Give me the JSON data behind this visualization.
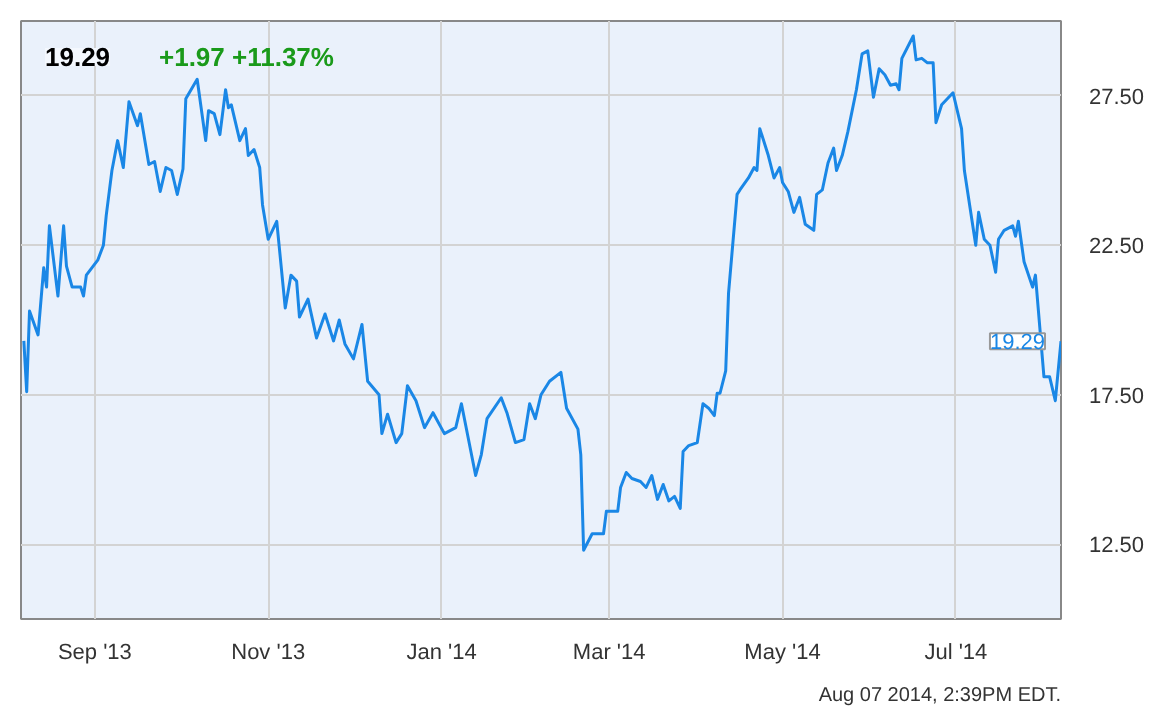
{
  "chart_data": {
    "type": "line",
    "title": "19.29",
    "subtitle": "+1.97  +11.37%",
    "annotations": [
      {
        "text": "19.29",
        "x": "2014-08-07",
        "y": 19.29
      },
      "Aug 07 2014, 2:39PM EDT."
    ],
    "x": [
      "2013-08-07",
      "2013-08-08",
      "2013-08-09",
      "2013-08-12",
      "2013-08-14",
      "2013-08-15",
      "2013-08-16",
      "2013-08-19",
      "2013-08-21",
      "2013-08-22",
      "2013-08-24",
      "2013-08-27",
      "2013-08-28",
      "2013-08-29",
      "2013-09-02",
      "2013-09-04",
      "2013-09-05",
      "2013-09-07",
      "2013-09-09",
      "2013-09-11",
      "2013-09-13",
      "2013-09-16",
      "2013-09-17",
      "2013-09-20",
      "2013-09-22",
      "2013-09-24",
      "2013-09-26",
      "2013-09-28",
      "2013-09-30",
      "2013-10-02",
      "2013-10-03",
      "2013-10-07",
      "2013-10-10",
      "2013-10-11",
      "2013-10-13",
      "2013-10-15",
      "2013-10-17",
      "2013-10-18",
      "2013-10-19",
      "2013-10-22",
      "2013-10-24",
      "2013-10-25",
      "2013-10-27",
      "2013-10-29",
      "2013-10-30",
      "2013-11-01",
      "2013-11-04",
      "2013-11-07",
      "2013-11-09",
      "2013-11-11",
      "2013-11-12",
      "2013-11-15",
      "2013-11-18",
      "2013-11-21",
      "2013-11-24",
      "2013-11-26",
      "2013-11-28",
      "2013-12-01",
      "2013-12-04",
      "2013-12-06",
      "2013-12-10",
      "2013-12-11",
      "2013-12-13",
      "2013-12-16",
      "2013-12-18",
      "2013-12-20",
      "2013-12-23",
      "2013-12-26",
      "2013-12-29",
      "2014-01-02",
      "2014-01-06",
      "2014-01-08",
      "2014-01-13",
      "2014-01-15",
      "2014-01-17",
      "2014-01-22",
      "2014-01-24",
      "2014-01-27",
      "2014-01-30",
      "2014-02-01",
      "2014-02-03",
      "2014-02-05",
      "2014-02-08",
      "2014-02-12",
      "2014-02-14",
      "2014-02-18",
      "2014-02-19",
      "2014-02-20",
      "2014-02-23",
      "2014-02-27",
      "2014-02-28",
      "2014-03-04",
      "2014-03-05",
      "2014-03-07",
      "2014-03-09",
      "2014-03-12",
      "2014-03-14",
      "2014-03-16",
      "2014-03-18",
      "2014-03-20",
      "2014-03-22",
      "2014-03-24",
      "2014-03-26",
      "2014-03-27",
      "2014-03-29",
      "2014-04-01",
      "2014-04-03",
      "2014-04-05",
      "2014-04-07",
      "2014-04-08",
      "2014-04-09",
      "2014-04-11",
      "2014-04-12",
      "2014-04-15",
      "2014-04-16",
      "2014-04-19",
      "2014-04-21",
      "2014-04-22",
      "2014-04-23",
      "2014-04-26",
      "2014-04-28",
      "2014-04-30",
      "2014-05-01",
      "2014-05-03",
      "2014-05-05",
      "2014-05-07",
      "2014-05-09",
      "2014-05-12",
      "2014-05-13",
      "2014-05-15",
      "2014-05-17",
      "2014-05-19",
      "2014-05-20",
      "2014-05-22",
      "2014-05-24",
      "2014-05-27",
      "2014-05-29",
      "2014-05-31",
      "2014-06-02",
      "2014-06-04",
      "2014-06-06",
      "2014-06-08",
      "2014-06-10",
      "2014-06-11",
      "2014-06-12",
      "2014-06-16",
      "2014-06-17",
      "2014-06-19",
      "2014-06-21",
      "2014-06-23",
      "2014-06-24",
      "2014-06-26",
      "2014-06-30",
      "2014-07-03",
      "2014-07-04",
      "2014-07-08",
      "2014-07-09",
      "2014-07-11",
      "2014-07-13",
      "2014-07-15",
      "2014-07-16",
      "2014-07-18",
      "2014-07-21",
      "2014-07-22",
      "2014-07-23",
      "2014-07-25",
      "2014-07-28",
      "2014-07-29",
      "2014-08-01",
      "2014-08-03",
      "2014-08-05",
      "2014-08-07"
    ],
    "series": [
      {
        "color": "#1a87e6",
        "values": [
          19.3,
          17.6,
          20.3,
          19.5,
          21.75,
          21.1,
          23.15,
          20.8,
          23.15,
          21.8,
          21.1,
          21.1,
          20.8,
          21.5,
          22,
          22.5,
          23.5,
          25,
          26,
          25.1,
          27.3,
          26.5,
          26.9,
          25.2,
          25.3,
          24.3,
          25.1,
          25,
          24.2,
          25.05,
          27.4,
          28.05,
          26,
          27,
          26.9,
          26.2,
          27.7,
          27.1,
          27.2,
          26,
          26.4,
          25.5,
          25.7,
          25.1,
          23.85,
          22.7,
          23.3,
          20.4,
          21.5,
          21.3,
          20.1,
          20.7,
          19.4,
          20.2,
          19.3,
          20,
          19.2,
          18.7,
          19.85,
          17.95,
          17.5,
          16.2,
          16.85,
          15.9,
          16.2,
          17.8,
          17.3,
          16.4,
          16.9,
          16.2,
          16.4,
          17.2,
          14.8,
          15.5,
          16.7,
          17.4,
          16.9,
          15.9,
          16,
          17.2,
          16.7,
          17.5,
          17.95,
          18.25,
          17.05,
          16.35,
          15.5,
          12.3,
          12.85,
          12.85,
          13.6,
          13.6,
          14.4,
          14.9,
          14.7,
          14.6,
          14.4,
          14.8,
          14,
          14.5,
          13.95,
          14.1,
          13.7,
          15.6,
          15.8,
          15.9,
          17.2,
          17.05,
          16.8,
          17.55,
          17.55,
          18.3,
          20.9,
          24.2,
          24.35,
          24.75,
          25.1,
          25,
          26.4,
          25.5,
          24.75,
          25.1,
          24.6,
          24.3,
          23.6,
          24.1,
          23.2,
          23,
          24.2,
          24.35,
          25.25,
          25.75,
          25,
          25.5,
          26.3,
          27.7,
          28.9,
          29,
          27.45,
          28.4,
          28.2,
          27.85,
          27.9,
          27.7,
          28.75,
          29.5,
          28.7,
          28.75,
          28.6,
          28.6,
          26.6,
          27.2,
          27.6,
          26.4,
          25,
          22.5,
          23.6,
          22.7,
          22.5,
          21.6,
          22.7,
          23,
          23.15,
          22.8,
          23.3,
          21.95,
          21.1,
          21.5,
          18.1,
          18.1,
          17.3,
          19.29
        ]
      }
    ],
    "xlim": [
      "2013-08-06",
      "2014-08-07"
    ],
    "xticks": [
      {
        "value": "2013-09-01",
        "label": "Sep '13"
      },
      {
        "value": "2013-11-01",
        "label": "Nov '13"
      },
      {
        "value": "2014-01-01",
        "label": "Jan '14"
      },
      {
        "value": "2014-03-01",
        "label": "Mar '14"
      },
      {
        "value": "2014-05-01",
        "label": "May '14"
      },
      {
        "value": "2014-07-01",
        "label": "Jul '14"
      }
    ],
    "ylim": [
      10,
      30
    ],
    "yticks": [
      {
        "value": 12.5,
        "label": "12.50"
      },
      {
        "value": 17.5,
        "label": "17.50"
      },
      {
        "value": 22.5,
        "label": "22.50"
      },
      {
        "value": 27.5,
        "label": "27.50"
      }
    ],
    "grid": true,
    "line_style": "solid"
  }
}
